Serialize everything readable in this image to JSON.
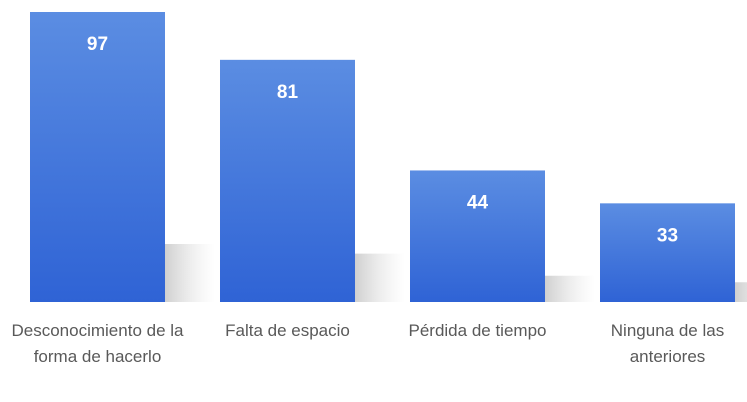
{
  "chart_data": {
    "type": "bar",
    "categories": [
      "Desconocimiento de la forma de hacerlo",
      "Falta de espacio",
      "Pérdida de tiempo",
      "Ninguna de las anteriores"
    ],
    "values": [
      97,
      81,
      44,
      33
    ],
    "color": "#3a6fd8"
  }
}
